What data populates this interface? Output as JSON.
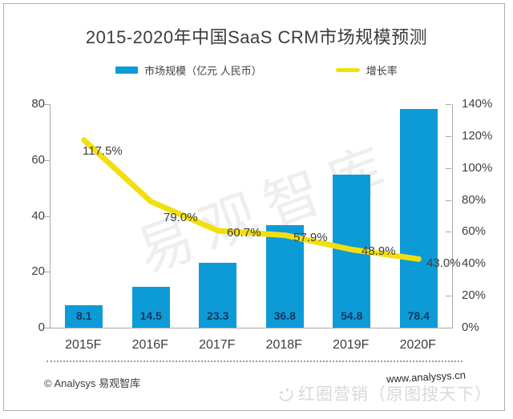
{
  "title": "2015-2020年中国SaaS CRM市场规模预测",
  "legend": {
    "bar_label": "市场规模（亿元 人民币）",
    "line_label": "增长率"
  },
  "colors": {
    "bar": "#0d9bd8",
    "line": "#f2df10",
    "bar_value_text": "#17375e",
    "axis": "#a8a8a8"
  },
  "chart_data": {
    "type": "bar",
    "subtype": "combo-bar-line",
    "title": "2015-2020年中国SaaS CRM市场规模预测",
    "categories": [
      "2015F",
      "2016F",
      "2017F",
      "2018F",
      "2019F",
      "2020F"
    ],
    "series": [
      {
        "name": "市场规模（亿元 人民币）",
        "type": "bar",
        "axis": "left",
        "values": [
          8.1,
          14.5,
          23.3,
          36.8,
          54.8,
          78.4
        ]
      },
      {
        "name": "增长率",
        "type": "line",
        "axis": "right",
        "unit": "%",
        "values": [
          117.5,
          79.0,
          60.7,
          57.9,
          48.9,
          43.0
        ]
      }
    ],
    "bar_labels": [
      "8.1",
      "14.5",
      "23.3",
      "36.8",
      "54.8",
      "78.4"
    ],
    "line_labels": [
      "117.5%",
      "79.0%",
      "60.7%",
      "57.9%",
      "48.9%",
      "43.0%"
    ],
    "left_axis": {
      "min": 0,
      "max": 80,
      "step": 20,
      "ticks": [
        "80",
        "60",
        "40",
        "20",
        "0"
      ]
    },
    "right_axis": {
      "min": 0,
      "max": 140,
      "step": 20,
      "ticks": [
        "140%",
        "120%",
        "100%",
        "80%",
        "60%",
        "40%",
        "20%",
        "0%"
      ]
    },
    "grid": false,
    "legend_position": "top"
  },
  "watermark_center": "易观智库",
  "footer": {
    "copyright": "© Analysys 易观智库",
    "website": "www.analysys.cn",
    "watermark": "红圈营销（原图搜天下）"
  }
}
